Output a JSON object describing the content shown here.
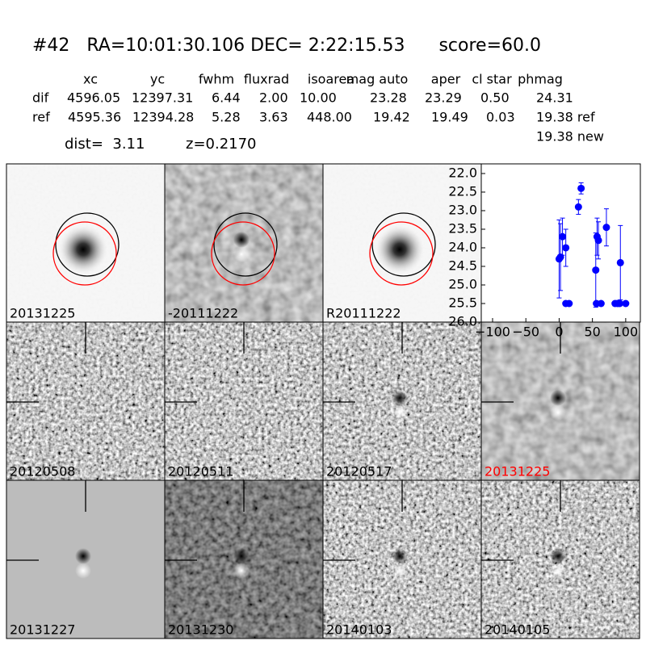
{
  "header": {
    "title": "#42   RA=10:01:30.106 DEC= 2:22:15.53      score=60.0"
  },
  "table": {
    "columns": [
      "xc",
      "yc",
      "fwhm",
      "fluxrad",
      "isoarea",
      "mag auto",
      "aper",
      "cl star",
      "phmag"
    ],
    "rows": [
      {
        "label": "dif",
        "values": [
          "4596.05",
          "12397.31",
          "6.44",
          "2.00",
          "10.00",
          "23.28",
          "23.29",
          "0.50",
          "24.31"
        ]
      },
      {
        "label": "ref",
        "values": [
          "4595.36",
          "12394.28",
          "5.28",
          "3.63",
          "448.00",
          "19.42",
          "19.49",
          "0.03",
          "19.38 ref"
        ]
      }
    ],
    "extra": "19.38 new",
    "dist": "dist=  3.11",
    "z": "z=0.2170"
  },
  "panels": [
    {
      "label": "20131225"
    },
    {
      "label": "-20111222"
    },
    {
      "label": "R20111222"
    },
    {
      "label": "20120508"
    },
    {
      "label": "20120511"
    },
    {
      "label": "20120517"
    },
    {
      "label": "20131225",
      "color": "#ff0000"
    },
    {
      "label": "20131227"
    },
    {
      "label": "20131230"
    },
    {
      "label": "20140103"
    },
    {
      "label": "20140105"
    }
  ],
  "chart_data": {
    "type": "scatter",
    "xlim": [
      -117,
      122
    ],
    "xticks": [
      {
        "value": -100,
        "label": "−100"
      },
      {
        "value": -50,
        "label": "−50"
      },
      0,
      50,
      100
    ],
    "ylim": [
      26.0,
      21.74
    ],
    "yticks": [
      {
        "value": 22.0,
        "label": "22.0"
      },
      22.5,
      {
        "value": 23.0,
        "label": "23.0"
      },
      23.5,
      {
        "value": 24.0,
        "label": "24.0"
      },
      24.5,
      {
        "value": 25.0,
        "label": "25.0"
      },
      25.5,
      {
        "value": 26.0,
        "label": "26.0"
      }
    ],
    "series": [
      {
        "color": "#0000ff",
        "x": [
          0,
          2,
          5,
          10,
          10,
          15,
          29,
          33,
          55,
          56,
          57,
          59,
          63,
          71,
          84,
          88,
          91,
          92,
          100
        ],
        "values": [
          24.3,
          24.25,
          23.7,
          24.0,
          25.5,
          25.5,
          22.9,
          22.4,
          24.6,
          25.5,
          23.7,
          23.8,
          25.5,
          23.45,
          25.5,
          25.5,
          25.5,
          24.4,
          25.5
        ],
        "errors": [
          1.05,
          0.9,
          0.5,
          0.5,
          0,
          0,
          0.2,
          0.15,
          1.0,
          0,
          0.5,
          0.5,
          0,
          0.5,
          0,
          0,
          0,
          1.0,
          0
        ]
      }
    ]
  }
}
